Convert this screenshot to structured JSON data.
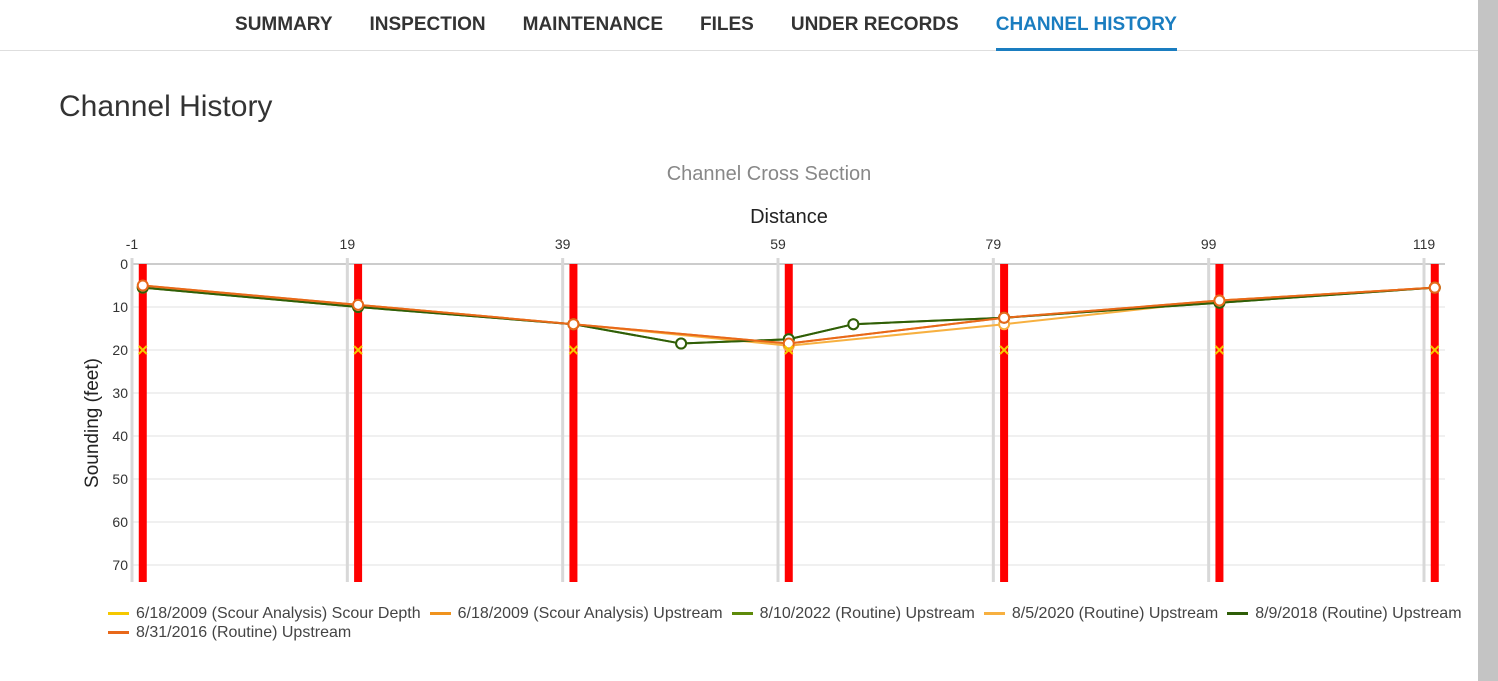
{
  "tabs": [
    {
      "label": "SUMMARY",
      "active": false
    },
    {
      "label": "INSPECTION",
      "active": false
    },
    {
      "label": "MAINTENANCE",
      "active": false
    },
    {
      "label": "FILES",
      "active": false
    },
    {
      "label": "UNDER RECORDS",
      "active": false
    },
    {
      "label": "CHANNEL HISTORY",
      "active": true
    }
  ],
  "colors": {
    "accent": "#1a7dc0",
    "pier": "#ff0000"
  },
  "page_title": "Channel History",
  "chart_data": {
    "type": "line",
    "title": "Channel Cross Section",
    "xlabel": "Distance",
    "ylabel": "Sounding (feet)",
    "x_axis_position": "top",
    "y_inverted": true,
    "xlim": [
      -1,
      121
    ],
    "ylim": [
      0,
      75
    ],
    "x_ticks": [
      -1,
      19,
      39,
      59,
      79,
      99,
      119
    ],
    "y_ticks": [
      0,
      10,
      20,
      30,
      40,
      50,
      60,
      70
    ],
    "grid": true,
    "legend_position": "bottom",
    "piers_x": [
      0,
      20,
      40,
      60,
      80,
      100,
      120
    ],
    "series": [
      {
        "name": "6/18/2009 (Scour Analysis) Scour Depth",
        "color": "#f5c800",
        "marker": "x",
        "x": [
          0,
          20,
          40,
          60,
          80,
          100,
          120
        ],
        "y": [
          20,
          20,
          20,
          20,
          20,
          20,
          20
        ],
        "line": false
      },
      {
        "name": "6/18/2009 (Scour Analysis) Upstream",
        "color": "#f0931e",
        "marker": "none",
        "x": [
          0,
          20,
          40,
          60,
          80,
          100,
          120
        ],
        "y": [
          5,
          9.5,
          14,
          18.5,
          12.5,
          8.5,
          5.5
        ],
        "line": true
      },
      {
        "name": "8/10/2022 (Routine) Upstream",
        "color": "#5e8a0a",
        "marker": "circle",
        "x": [
          0,
          20,
          40,
          50,
          60,
          66,
          80,
          100,
          120
        ],
        "y": [
          5.5,
          10,
          14,
          18.5,
          17.5,
          14,
          12.5,
          9,
          5.5
        ],
        "line": true
      },
      {
        "name": "8/5/2020 (Routine) Upstream",
        "color": "#f7b040",
        "marker": "circle",
        "x": [
          0,
          20,
          40,
          60,
          80,
          100,
          120
        ],
        "y": [
          5.5,
          9.5,
          14,
          19,
          14,
          8.5,
          5.5
        ],
        "line": true
      },
      {
        "name": "8/9/2018 (Routine) Upstream",
        "color": "#2f5e08",
        "marker": "circle",
        "x": [
          0,
          20,
          40,
          50,
          60,
          66,
          80,
          100,
          120
        ],
        "y": [
          5.5,
          10,
          14,
          18.5,
          17.5,
          14,
          12.5,
          9,
          5.5
        ],
        "line": true
      },
      {
        "name": "8/31/2016 (Routine) Upstream",
        "color": "#e8681a",
        "marker": "circle",
        "x": [
          0,
          20,
          40,
          60,
          80,
          100,
          120
        ],
        "y": [
          5,
          9.5,
          14,
          18.5,
          12.5,
          8.5,
          5.5
        ],
        "line": true
      }
    ]
  }
}
